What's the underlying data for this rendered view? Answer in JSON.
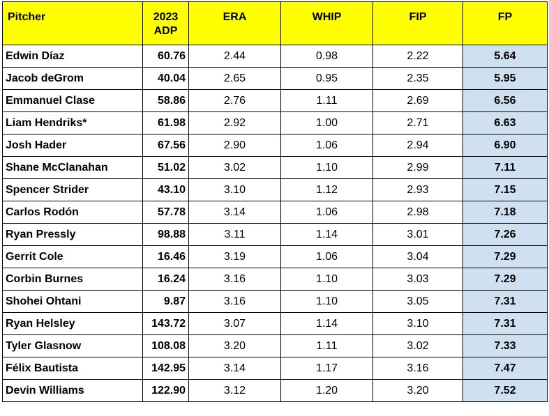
{
  "header": {
    "pitcher": "Pitcher",
    "adp_line1": "2023",
    "adp_line2": "ADP",
    "era": "ERA",
    "whip": "WHIP",
    "fip": "FIP",
    "fp": "FP"
  },
  "rows": [
    {
      "pitcher": "Edwin Díaz",
      "adp": "60.76",
      "era": "2.44",
      "whip": "0.98",
      "fip": "2.22",
      "fp": "5.64"
    },
    {
      "pitcher": "Jacob deGrom",
      "adp": "40.04",
      "era": "2.65",
      "whip": "0.95",
      "fip": "2.35",
      "fp": "5.95"
    },
    {
      "pitcher": "Emmanuel Clase",
      "adp": "58.86",
      "era": "2.76",
      "whip": "1.11",
      "fip": "2.69",
      "fp": "6.56"
    },
    {
      "pitcher": "Liam Hendriks*",
      "adp": "61.98",
      "era": "2.92",
      "whip": "1.00",
      "fip": "2.71",
      "fp": "6.63"
    },
    {
      "pitcher": "Josh Hader",
      "adp": "67.56",
      "era": "2.90",
      "whip": "1.06",
      "fip": "2.94",
      "fp": "6.90"
    },
    {
      "pitcher": "Shane McClanahan",
      "adp": "51.02",
      "era": "3.02",
      "whip": "1.10",
      "fip": "2.99",
      "fp": "7.11"
    },
    {
      "pitcher": "Spencer Strider",
      "adp": "43.10",
      "era": "3.10",
      "whip": "1.12",
      "fip": "2.93",
      "fp": "7.15"
    },
    {
      "pitcher": "Carlos Rodón",
      "adp": "57.78",
      "era": "3.14",
      "whip": "1.06",
      "fip": "2.98",
      "fp": "7.18"
    },
    {
      "pitcher": "Ryan Pressly",
      "adp": "98.88",
      "era": "3.11",
      "whip": "1.14",
      "fip": "3.01",
      "fp": "7.26"
    },
    {
      "pitcher": "Gerrit Cole",
      "adp": "16.46",
      "era": "3.19",
      "whip": "1.06",
      "fip": "3.04",
      "fp": "7.29"
    },
    {
      "pitcher": "Corbin Burnes",
      "adp": "16.24",
      "era": "3.16",
      "whip": "1.10",
      "fip": "3.03",
      "fp": "7.29"
    },
    {
      "pitcher": "Shohei Ohtani",
      "adp": "9.87",
      "era": "3.16",
      "whip": "1.10",
      "fip": "3.05",
      "fp": "7.31"
    },
    {
      "pitcher": "Ryan Helsley",
      "adp": "143.72",
      "era": "3.07",
      "whip": "1.14",
      "fip": "3.10",
      "fp": "7.31"
    },
    {
      "pitcher": "Tyler Glasnow",
      "adp": "108.08",
      "era": "3.20",
      "whip": "1.11",
      "fip": "3.02",
      "fp": "7.33"
    },
    {
      "pitcher": "Félix Bautista",
      "adp": "142.95",
      "era": "3.14",
      "whip": "1.17",
      "fip": "3.16",
      "fp": "7.47"
    },
    {
      "pitcher": "Devin Williams",
      "adp": "122.90",
      "era": "3.12",
      "whip": "1.20",
      "fip": "3.20",
      "fp": "7.52"
    }
  ]
}
